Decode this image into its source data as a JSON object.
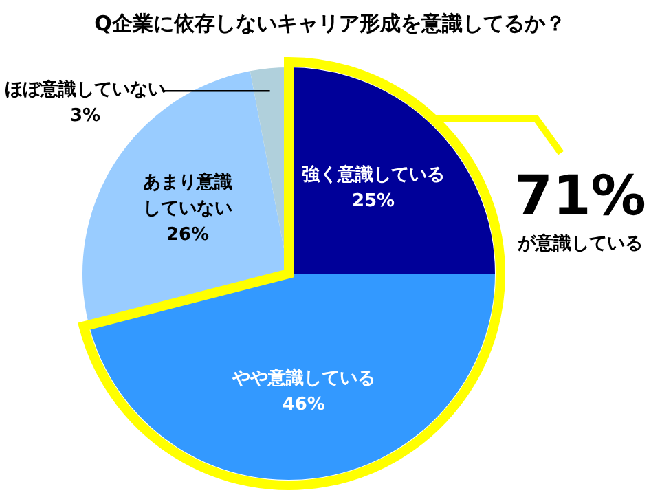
{
  "chart_data": {
    "type": "pie",
    "title": "Q企業に依存しないキャリア形成を意識してるか？",
    "categories": [
      "強く意識している",
      "やや意識している",
      "あまり意識していない",
      "ほぼ意識していない"
    ],
    "values": [
      25,
      46,
      26,
      3
    ],
    "value_labels": [
      "25%",
      "46%",
      "26%",
      "3%"
    ],
    "colors": [
      "#000099",
      "#3399ff",
      "#99ccff",
      "#b0d0dc"
    ],
    "annotations": [
      "71%",
      "が意識している"
    ],
    "legend": false
  }
}
